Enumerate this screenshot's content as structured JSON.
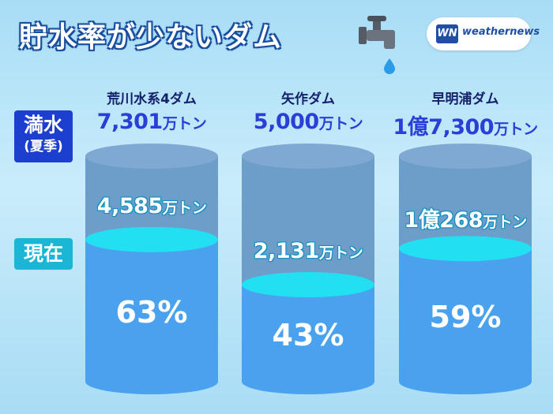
{
  "title": "貯水率が少ないダム",
  "brand": {
    "mark": "WN",
    "name": "weathernews"
  },
  "legend": {
    "full_line1": "満水",
    "full_line2": "(夏季)",
    "now": "現在"
  },
  "colors": {
    "full_box": "#1c3fd0",
    "now_box": "#1bb6d6",
    "water": "#4aa2ee",
    "water_top": "#22e0f2",
    "tank": "#6d9dc9"
  },
  "dams": [
    {
      "name": "荒川水系4ダム",
      "capacity": "7,301",
      "capacity_unit": "万トン",
      "current": "4,585",
      "current_unit": "万トン",
      "percent_label": "63%",
      "fill": 0.63
    },
    {
      "name": "矢作ダム",
      "capacity": "5,000",
      "capacity_unit": "万トン",
      "current": "2,131",
      "current_unit": "万トン",
      "percent_label": "43%",
      "fill": 0.43
    },
    {
      "name": "早明浦ダム",
      "capacity": "1億7,300",
      "capacity_unit": "万トン",
      "current": "1億268",
      "current_unit": "万トン",
      "percent_label": "59%",
      "fill": 0.59
    }
  ]
}
